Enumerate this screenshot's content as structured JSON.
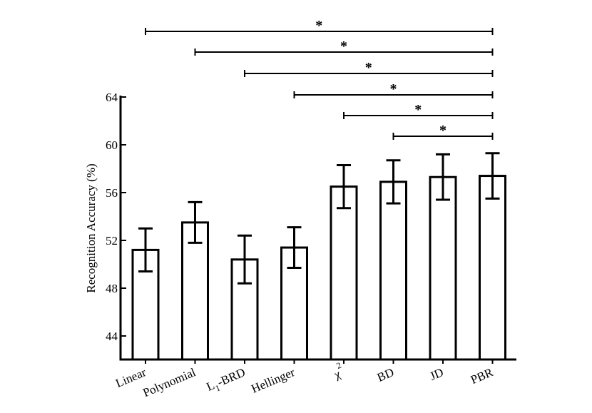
{
  "chart_data": {
    "type": "bar",
    "ylabel": "Recognition Accuracy (%)",
    "xlabel": "",
    "ylim": [
      42,
      64
    ],
    "yticks": [
      44,
      48,
      52,
      56,
      60,
      64
    ],
    "categories": [
      {
        "label": "Linear"
      },
      {
        "label": "Polynomial"
      },
      {
        "label": "L",
        "subscript": "1",
        "suffix": "-BRD"
      },
      {
        "label": "Hellinger"
      },
      {
        "label": "χ",
        "superscript": "2"
      },
      {
        "label": "BD"
      },
      {
        "label": "JD"
      },
      {
        "label": "PBR"
      }
    ],
    "values": [
      51.2,
      53.5,
      50.4,
      51.4,
      56.5,
      56.9,
      57.3,
      57.4
    ],
    "errors": [
      1.8,
      1.7,
      2.0,
      1.7,
      1.8,
      1.8,
      1.9,
      1.9
    ],
    "significance": [
      {
        "from": 0,
        "to": 7,
        "label": "*"
      },
      {
        "from": 1,
        "to": 7,
        "label": "*"
      },
      {
        "from": 2,
        "to": 7,
        "label": "*"
      },
      {
        "from": 3,
        "to": 7,
        "label": "*"
      },
      {
        "from": 4,
        "to": 7,
        "label": "*"
      },
      {
        "from": 5,
        "to": 7,
        "label": "*"
      }
    ]
  }
}
